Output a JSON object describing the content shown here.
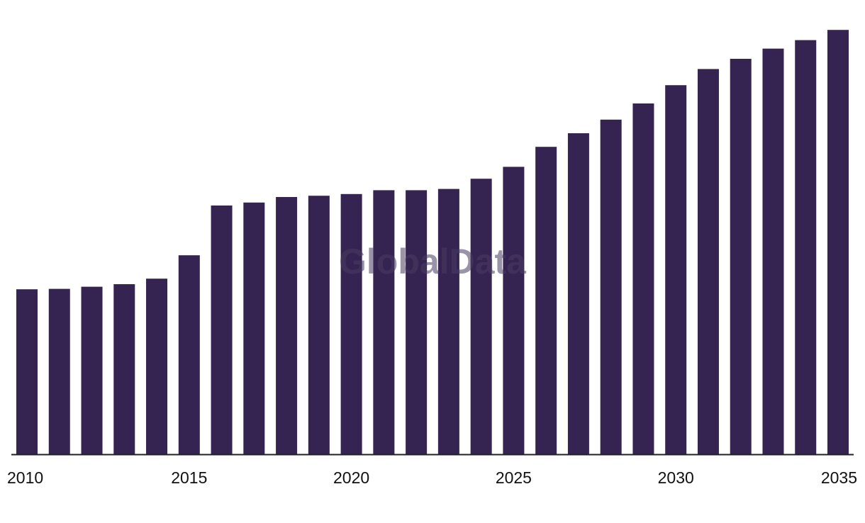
{
  "chart_data": {
    "type": "bar",
    "categories": [
      "2010",
      "2011",
      "2012",
      "2013",
      "2014",
      "2015",
      "2016",
      "2017",
      "2018",
      "2019",
      "2020",
      "2021",
      "2022",
      "2023",
      "2024",
      "2025",
      "2026",
      "2027",
      "2028",
      "2029",
      "2030",
      "2031",
      "2032",
      "2033",
      "2034",
      "2035"
    ],
    "values": [
      38.8,
      38.9,
      39.4,
      40.0,
      41.3,
      46.8,
      58.5,
      59.2,
      60.5,
      60.8,
      61.2,
      62.1,
      62.1,
      62.4,
      64.8,
      67.6,
      72.3,
      75.5,
      78.7,
      82.5,
      86.8,
      90.6,
      93.0,
      95.4,
      97.4,
      99.8
    ],
    "x_tick_labels": [
      "2010",
      "2015",
      "2020",
      "2025",
      "2030",
      "2035"
    ],
    "ylim": [
      0,
      100
    ],
    "grid": false,
    "legend": "none",
    "title": "",
    "xlabel": "",
    "ylabel": ""
  },
  "colors": {
    "bar": "#352452",
    "axis": "#222222",
    "watermark": "#4a3d63"
  },
  "watermark": "GlobalData"
}
